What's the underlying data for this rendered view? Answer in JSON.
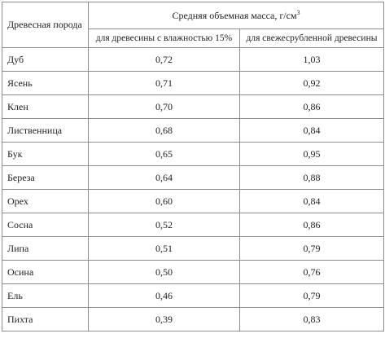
{
  "table": {
    "header": {
      "species": "Древесная порода",
      "group": "Средняя объемная масса, г/см",
      "group_unit_exp": "3",
      "col1": "для древесины с влажностью 15%",
      "col2": "для свежесрубленной древесины"
    },
    "rows": [
      {
        "name": "Дуб",
        "v15": "0,72",
        "fresh": "1,03"
      },
      {
        "name": "Ясень",
        "v15": "0,71",
        "fresh": "0,92"
      },
      {
        "name": "Клен",
        "v15": "0,70",
        "fresh": "0,86"
      },
      {
        "name": "Лиственница",
        "v15": "0,68",
        "fresh": "0,84"
      },
      {
        "name": "Бук",
        "v15": "0,65",
        "fresh": "0,95"
      },
      {
        "name": "Береза",
        "v15": "0,64",
        "fresh": "0,88"
      },
      {
        "name": "Орех",
        "v15": "0,60",
        "fresh": "0,84"
      },
      {
        "name": "Сосна",
        "v15": "0,52",
        "fresh": "0,86"
      },
      {
        "name": "Липа",
        "v15": "0,51",
        "fresh": "0,79"
      },
      {
        "name": "Осина",
        "v15": "0,50",
        "fresh": "0,76"
      },
      {
        "name": "Ель",
        "v15": "0,46",
        "fresh": "0,79"
      },
      {
        "name": "Пихта",
        "v15": "0,39",
        "fresh": "0,83"
      }
    ]
  }
}
